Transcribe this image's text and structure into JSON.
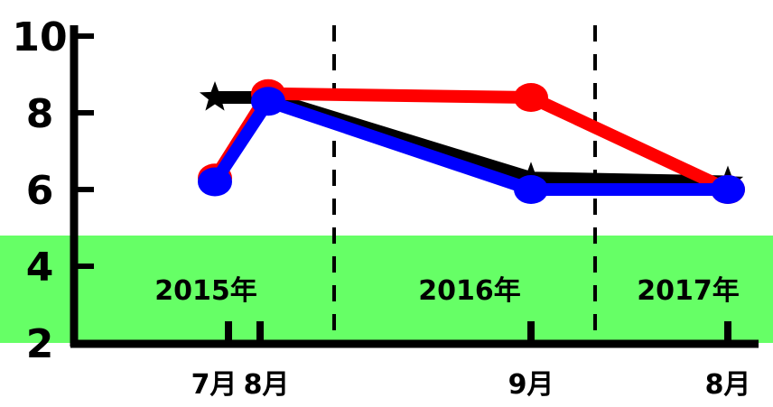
{
  "chart_data": {
    "type": "line",
    "ylim": [
      2,
      10
    ],
    "yticks": [
      "2",
      "4",
      "6",
      "8",
      "10"
    ],
    "x_categories": [
      "7月",
      "8月",
      "9月",
      "8月"
    ],
    "year_bands": [
      "2015年",
      "2016年",
      "2017年"
    ],
    "band_range": [
      2,
      4.8
    ],
    "band_color": "#66ff66",
    "series": [
      {
        "color": "#000000",
        "marker": "star",
        "values": [
          8.4,
          8.4,
          6.3,
          6.2
        ]
      },
      {
        "color": "#ff0000",
        "marker": "circle",
        "values": [
          6.3,
          8.5,
          8.4,
          6.0
        ]
      },
      {
        "color": "#0000ff",
        "marker": "circle",
        "values": [
          6.2,
          8.3,
          6.0,
          6.0
        ]
      }
    ]
  }
}
